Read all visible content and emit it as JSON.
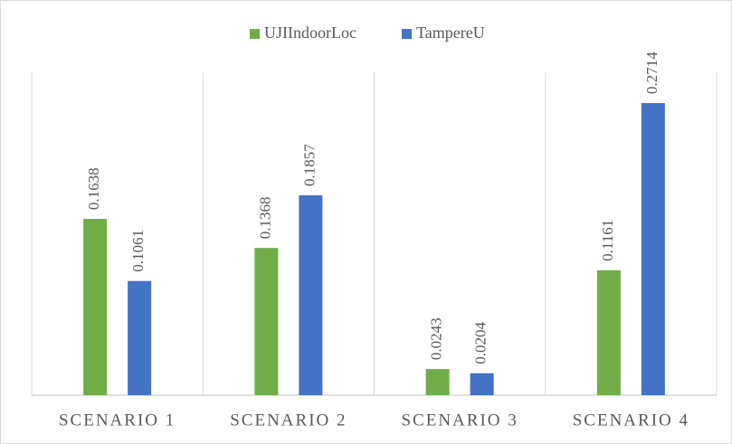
{
  "chart_data": {
    "type": "bar",
    "categories": [
      "SCENARIO 1",
      "SCENARIO 2",
      "SCENARIO 3",
      "SCENARIO 4"
    ],
    "series": [
      {
        "name": "UJIIndoorLoc",
        "color": "#70ad47",
        "values": [
          0.1638,
          0.1368,
          0.0243,
          0.1161
        ]
      },
      {
        "name": "TampereU",
        "color": "#4472c4",
        "values": [
          0.1061,
          0.1857,
          0.0204,
          0.2714
        ]
      }
    ],
    "ylim": [
      0,
      0.3
    ]
  }
}
